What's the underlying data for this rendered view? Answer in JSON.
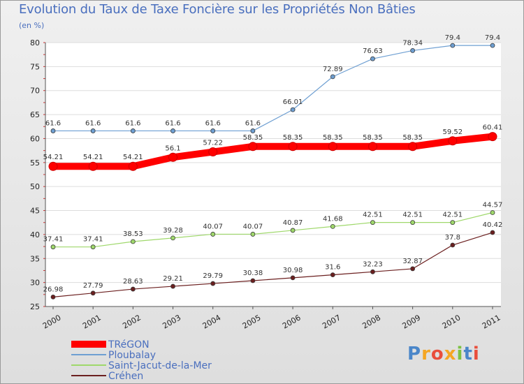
{
  "title": "Evolution du Taux de Taxe Foncière sur les Propriétés Non Bâties",
  "unit_label": "(en %)",
  "logo_text": "Proxiti",
  "chart_data": {
    "type": "line",
    "x": [
      "2000",
      "2001",
      "2002",
      "2003",
      "2004",
      "2005",
      "2006",
      "2007",
      "2008",
      "2009",
      "2010",
      "2011"
    ],
    "ylim": [
      25,
      80
    ],
    "yticks": [
      25,
      30,
      35,
      40,
      45,
      50,
      55,
      60,
      65,
      70,
      75,
      80
    ],
    "grid": "horizontal",
    "legend_position": "bottom-left",
    "series": [
      {
        "name": "TRéGON",
        "color": "#ff0000",
        "values": [
          54.21,
          54.21,
          54.21,
          56.1,
          57.22,
          58.35,
          58.35,
          58.35,
          58.35,
          58.35,
          59.52,
          60.41
        ],
        "labels": [
          "54.21",
          "54.21",
          "54.21",
          "56.1",
          "57.22",
          "58.35",
          "58.35",
          "58.35",
          "58.35",
          "58.35",
          "59.52",
          "60.41"
        ]
      },
      {
        "name": "Ploubalay",
        "color": "#6e9fd2",
        "values": [
          61.6,
          61.6,
          61.6,
          61.6,
          61.6,
          61.6,
          66.01,
          72.89,
          76.63,
          78.34,
          79.4,
          79.4
        ],
        "labels": [
          "61.6",
          "61.6",
          "61.6",
          "61.6",
          "61.6",
          "61.6",
          "66.01",
          "72.89",
          "76.63",
          "78.34",
          "79.4",
          "79.4"
        ]
      },
      {
        "name": "Saint-Jacut-de-la-Mer",
        "color": "#9fd86b",
        "values": [
          37.41,
          37.41,
          38.53,
          39.28,
          40.07,
          40.07,
          40.87,
          41.68,
          42.51,
          42.51,
          42.51,
          44.57
        ],
        "labels": [
          "37.41",
          "37.41",
          "38.53",
          "39.28",
          "40.07",
          "40.07",
          "40.87",
          "41.68",
          "42.51",
          "42.51",
          "42.51",
          "44.57"
        ]
      },
      {
        "name": "Créhen",
        "color": "#6b1f1f",
        "values": [
          26.98,
          27.79,
          28.63,
          29.21,
          29.79,
          30.38,
          30.98,
          31.6,
          32.23,
          32.87,
          37.8,
          40.42
        ],
        "labels": [
          "26.98",
          "27.79",
          "28.63",
          "29.21",
          "29.79",
          "30.38",
          "30.98",
          "31.6",
          "32.23",
          "32.87",
          "37.8",
          "40.42"
        ]
      }
    ]
  }
}
